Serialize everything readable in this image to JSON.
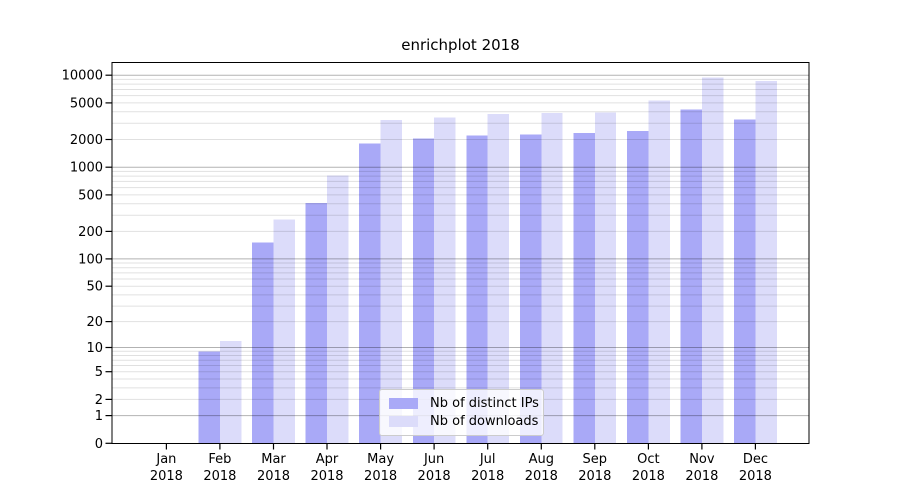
{
  "chart_data": {
    "type": "bar",
    "title": "enrichplot 2018",
    "categories": [
      "Jan",
      "Feb",
      "Mar",
      "Apr",
      "May",
      "Jun",
      "Jul",
      "Aug",
      "Sep",
      "Oct",
      "Nov",
      "Dec"
    ],
    "category_year": "2018",
    "series": [
      {
        "name": "Nb of distinct IPs",
        "color": "#a9a9f7",
        "values": [
          0,
          9,
          152,
          410,
          1800,
          2060,
          2200,
          2280,
          2350,
          2480,
          4260,
          3320
        ]
      },
      {
        "name": "Nb of downloads",
        "color": "#dcdcfa",
        "values": [
          0,
          12,
          268,
          815,
          3260,
          3450,
          3810,
          3880,
          3910,
          5280,
          9400,
          8650
        ]
      }
    ],
    "xlabel": "",
    "ylabel": "",
    "yscale": "log1p",
    "ylim": [
      0,
      13700
    ],
    "yticks": [
      0,
      1,
      2,
      5,
      10,
      20,
      50,
      100,
      200,
      500,
      1000,
      2000,
      5000,
      10000
    ],
    "grid": "on",
    "legend_position": "lower center",
    "colors": {
      "grid_major": "rgba(0,0,0,0.30)",
      "grid_minor": "rgba(0,0,0,0.12)",
      "axis": "#000000",
      "background": "#ffffff"
    }
  }
}
